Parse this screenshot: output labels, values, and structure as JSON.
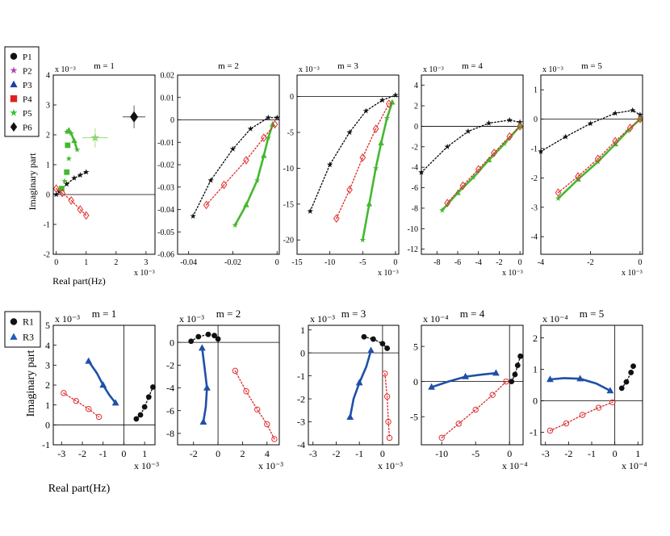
{
  "figure": {
    "legend_top": [
      {
        "label": "P1",
        "marker": "circle",
        "color": "#111111"
      },
      {
        "label": "P2",
        "marker": "star",
        "color": "#b048b0"
      },
      {
        "label": "P3",
        "marker": "triangle",
        "color": "#1f3fa8"
      },
      {
        "label": "P4",
        "marker": "square",
        "color": "#e02020"
      },
      {
        "label": "P5",
        "marker": "star",
        "color": "#33c233"
      },
      {
        "label": "P6",
        "marker": "diamond",
        "color": "#111111"
      }
    ],
    "legend_bottom": [
      {
        "label": "R1",
        "marker": "circle",
        "color": "#111111"
      },
      {
        "label": "R3",
        "marker": "triangle",
        "color": "#1f5fb4"
      }
    ],
    "top_ylabel": "Imaginary part",
    "top_xlabel": "Real part(Hz)",
    "bottom_ylabel": "Imaginary part",
    "bottom_xlabel": "Real part(Hz)"
  },
  "colors": {
    "black": "#111111",
    "green": "#44b830",
    "red": "#e03030",
    "blue": "#1f4fa8",
    "blue_light": "#2b6fd0",
    "magenta": "#b048b0",
    "pale_green": "#8fd66a"
  },
  "chart_data": [
    {
      "type": "scatter",
      "title": "m = 1",
      "exponent": "x 10⁻³",
      "xticks": [
        "0",
        "1",
        "2",
        "3"
      ],
      "yticks": [
        "-2",
        "-1",
        "0",
        "1",
        "2",
        "3",
        "4"
      ],
      "xlim": [
        -0.1,
        3.3
      ],
      "ylim": [
        -2,
        4
      ],
      "series": [
        {
          "name": "P6",
          "style": "black-dotted",
          "x": [
            0,
            0.1,
            0.35,
            0.6,
            0.8,
            1.0
          ],
          "y": [
            0,
            0.1,
            0.35,
            0.55,
            0.65,
            0.75
          ]
        },
        {
          "name": "P5",
          "style": "green-line",
          "x": [
            0.35,
            0.42,
            0.5,
            0.6,
            0.7
          ],
          "y": [
            2.1,
            2.15,
            2.05,
            1.8,
            1.5
          ]
        },
        {
          "name": "P5",
          "style": "green-markers",
          "x": [
            0.4,
            0.38,
            0.42,
            0.35,
            0.28,
            0.18
          ],
          "y": [
            2.1,
            1.65,
            1.2,
            0.75,
            0.45,
            0.2
          ]
        },
        {
          "name": "P2",
          "style": "red-dotted",
          "x": [
            0,
            0.2,
            0.5,
            0.8,
            1.0
          ],
          "y": [
            0.2,
            0.05,
            -0.2,
            -0.5,
            -0.7
          ]
        },
        {
          "name": "P6",
          "style": "diamond",
          "x": [
            2.6
          ],
          "y": [
            2.6
          ]
        },
        {
          "name": "P5",
          "style": "pale-star",
          "x": [
            1.3
          ],
          "y": [
            1.9
          ]
        }
      ]
    },
    {
      "type": "scatter",
      "title": "m = 2",
      "exponent": "",
      "xticks": [
        "-0.04",
        "-0.02",
        "0"
      ],
      "yticks": [
        "-0.06",
        "-0.05",
        "-0.04",
        "-0.03",
        "-0.02",
        "-0.01",
        "0",
        "0.01",
        "0.02"
      ],
      "xlim": [
        -0.045,
        0.001
      ],
      "ylim": [
        -0.06,
        0.02
      ],
      "series": [
        {
          "name": "P6",
          "style": "black-dotted",
          "x": [
            -0.038,
            -0.03,
            -0.02,
            -0.012,
            -0.004,
            0
          ],
          "y": [
            -0.043,
            -0.027,
            -0.013,
            -0.004,
            0.001,
            0.001
          ]
        },
        {
          "name": "P5",
          "style": "green-line",
          "x": [
            -0.019,
            -0.014,
            -0.009,
            -0.006,
            -0.004,
            -0.002
          ],
          "y": [
            -0.047,
            -0.038,
            -0.027,
            -0.016,
            -0.008,
            -0.002
          ]
        },
        {
          "name": "P2",
          "style": "red-dotted",
          "x": [
            -0.032,
            -0.024,
            -0.014,
            -0.006,
            -0.001
          ],
          "y": [
            -0.038,
            -0.029,
            -0.018,
            -0.008,
            -0.002
          ]
        }
      ]
    },
    {
      "type": "scatter",
      "title": "m = 3",
      "exponent": "x 10⁻³",
      "xticks": [
        "-15",
        "-10",
        "-5",
        "0"
      ],
      "yticks": [
        "-20",
        "-15",
        "-10",
        "-5",
        "0"
      ],
      "xlim": [
        -15,
        0.5
      ],
      "ylim": [
        -22,
        3
      ],
      "series": [
        {
          "name": "P6",
          "style": "black-dotted",
          "x": [
            -13,
            -10,
            -7,
            -4.5,
            -2,
            0
          ],
          "y": [
            -16,
            -9.5,
            -5,
            -2,
            -0.5,
            0.2
          ]
        },
        {
          "name": "P5",
          "style": "green-line",
          "x": [
            -5,
            -4,
            -3,
            -2.2,
            -1.3,
            -0.5
          ],
          "y": [
            -20,
            -15,
            -10,
            -6.5,
            -3,
            -0.8
          ]
        },
        {
          "name": "P2",
          "style": "red-dotted",
          "x": [
            -9,
            -7,
            -5,
            -3,
            -1
          ],
          "y": [
            -17,
            -13,
            -8.5,
            -4.5,
            -1
          ]
        }
      ]
    },
    {
      "type": "scatter",
      "title": "m = 4",
      "exponent": "x 10⁻³",
      "xticks": [
        "-8",
        "-6",
        "-4",
        "-2",
        "0"
      ],
      "yticks": [
        "-12",
        "-10",
        "-8",
        "-6",
        "-4",
        "-2",
        "0",
        "2",
        "4"
      ],
      "xlim": [
        -9.5,
        0.3
      ],
      "ylim": [
        -12.5,
        5
      ],
      "series": [
        {
          "name": "P6",
          "style": "black-dotted",
          "x": [
            -9.5,
            -7,
            -5,
            -3,
            -1,
            0
          ],
          "y": [
            -4.5,
            -2,
            -0.5,
            0.3,
            0.6,
            0.4
          ]
        },
        {
          "name": "P5",
          "style": "green-line",
          "x": [
            -7.5,
            -6,
            -4.5,
            -3,
            -1.5,
            0
          ],
          "y": [
            -8.2,
            -6.5,
            -5,
            -3.3,
            -1.7,
            0
          ]
        },
        {
          "name": "P2",
          "style": "red-dotted",
          "x": [
            -7,
            -5.5,
            -4,
            -2.5,
            -1,
            0
          ],
          "y": [
            -7.5,
            -5.8,
            -4.2,
            -2.6,
            -1,
            0
          ]
        }
      ]
    },
    {
      "type": "scatter",
      "title": "m = 5",
      "exponent": "x 10⁻³",
      "xticks": [
        "-4",
        "-2",
        "0"
      ],
      "yticks": [
        "-4",
        "-3",
        "-2",
        "-1",
        "0",
        "1"
      ],
      "xlim": [
        -4,
        0.1
      ],
      "ylim": [
        -4.6,
        1.5
      ],
      "series": [
        {
          "name": "P6",
          "style": "black-dotted",
          "x": [
            -4,
            -3,
            -2,
            -1,
            -0.3,
            0
          ],
          "y": [
            -1.1,
            -0.6,
            -0.15,
            0.2,
            0.3,
            0.15
          ]
        },
        {
          "name": "P5",
          "style": "green-line",
          "x": [
            -3.3,
            -2.5,
            -1.7,
            -1.0,
            -0.5,
            0
          ],
          "y": [
            -2.7,
            -2.05,
            -1.45,
            -0.85,
            -0.4,
            0
          ]
        },
        {
          "name": "P2",
          "style": "red-dotted",
          "x": [
            -3.3,
            -2.5,
            -1.7,
            -1.0,
            -0.4,
            0
          ],
          "y": [
            -2.5,
            -1.95,
            -1.35,
            -0.75,
            -0.3,
            0
          ]
        }
      ]
    },
    {
      "type": "scatter",
      "title": "m = 1",
      "exponent": "x 10⁻³",
      "xticks": [
        "-3",
        "-2",
        "-1",
        "0",
        "1"
      ],
      "yticks": [
        "-1",
        "0",
        "1",
        "2",
        "3",
        "4",
        "5"
      ],
      "xlim": [
        -3.4,
        1.5
      ],
      "ylim": [
        -1,
        5
      ],
      "series": [
        {
          "name": "R3",
          "style": "blue-line",
          "x": [
            -1.7,
            -1.3,
            -1.0,
            -0.7,
            -0.4
          ],
          "y": [
            3.2,
            2.6,
            2.0,
            1.5,
            1.1
          ]
        },
        {
          "name": "R1",
          "style": "red-dotted",
          "x": [
            -2.9,
            -2.3,
            -1.7,
            -1.2
          ],
          "y": [
            1.6,
            1.2,
            0.8,
            0.4
          ]
        },
        {
          "name": "R1",
          "style": "black-dotted",
          "x": [
            0.6,
            0.8,
            1.0,
            1.2,
            1.4
          ],
          "y": [
            0.3,
            0.5,
            0.9,
            1.4,
            1.9
          ]
        }
      ]
    },
    {
      "type": "scatter",
      "title": "m = 2",
      "exponent": "x 10⁻³",
      "xticks": [
        "-2",
        "0",
        "2",
        "4"
      ],
      "yticks": [
        "-8",
        "-6",
        "-4",
        "-2",
        "0"
      ],
      "xlim": [
        -3.3,
        5
      ],
      "ylim": [
        -9,
        1.5
      ],
      "series": [
        {
          "name": "R3",
          "style": "blue-line",
          "x": [
            -1.3,
            -1.1,
            -0.9,
            -1.0,
            -1.2
          ],
          "y": [
            -0.5,
            -2.2,
            -4.0,
            -5.7,
            -7.0
          ]
        },
        {
          "name": "R1",
          "style": "red-dotted",
          "x": [
            1.4,
            2.3,
            3.2,
            4.0,
            4.6
          ],
          "y": [
            -2.5,
            -4.3,
            -5.9,
            -7.2,
            -8.5
          ]
        },
        {
          "name": "R1",
          "style": "black-dotted",
          "x": [
            -2.2,
            -1.6,
            -0.8,
            -0.3,
            0.0
          ],
          "y": [
            0.1,
            0.5,
            0.7,
            0.6,
            0.3
          ]
        }
      ]
    },
    {
      "type": "scatter",
      "title": "m = 3",
      "exponent": "x 10⁻³",
      "xticks": [
        "-3",
        "-2",
        "-1",
        "0"
      ],
      "yticks": [
        "-4",
        "-3",
        "-2",
        "-1",
        "0",
        "1"
      ],
      "xlim": [
        -3.2,
        0.7
      ],
      "ylim": [
        -4,
        1.2
      ],
      "series": [
        {
          "name": "R3",
          "style": "blue-line",
          "x": [
            -0.5,
            -0.7,
            -1.0,
            -1.25,
            -1.4
          ],
          "y": [
            0.1,
            -0.6,
            -1.3,
            -2.0,
            -2.8
          ]
        },
        {
          "name": "R1",
          "style": "red-dotted",
          "x": [
            0.1,
            0.2,
            0.25,
            0.3
          ],
          "y": [
            -0.9,
            -1.9,
            -3.0,
            -3.7
          ]
        },
        {
          "name": "R1",
          "style": "black-dotted",
          "x": [
            -0.8,
            -0.4,
            0,
            0.2
          ],
          "y": [
            0.7,
            0.6,
            0.4,
            0.2
          ]
        }
      ]
    },
    {
      "type": "scatter",
      "title": "m = 4",
      "exponent": "x 10⁻⁴",
      "xticks": [
        "-10",
        "-5",
        "0"
      ],
      "yticks": [
        "-5",
        "0",
        "5"
      ],
      "xlim": [
        -13,
        2
      ],
      "ylim": [
        -9,
        8
      ],
      "series": [
        {
          "name": "R3",
          "style": "blue-line",
          "x": [
            -11.5,
            -9,
            -6.5,
            -4,
            -2
          ],
          "y": [
            -0.8,
            0.0,
            0.7,
            1.0,
            1.2
          ]
        },
        {
          "name": "R1",
          "style": "red-dotted",
          "x": [
            -10,
            -7.5,
            -5,
            -2.5,
            -0.5
          ],
          "y": [
            -8.0,
            -6.0,
            -4.0,
            -1.9,
            0.0
          ]
        },
        {
          "name": "R1",
          "style": "black-dotted",
          "x": [
            0.3,
            0.8,
            1.2,
            1.6
          ],
          "y": [
            0.0,
            1.0,
            2.3,
            3.6
          ]
        }
      ]
    },
    {
      "type": "scatter",
      "title": "m = 5",
      "exponent": "x 10⁻⁴",
      "xticks": [
        "-3",
        "-2",
        "-1",
        "0",
        "1"
      ],
      "yticks": [
        "-1",
        "0",
        "1",
        "2"
      ],
      "xlim": [
        -3.2,
        1.2
      ],
      "ylim": [
        -1.4,
        2.4
      ],
      "series": [
        {
          "name": "R3",
          "style": "blue-line",
          "x": [
            -2.8,
            -2.2,
            -1.5,
            -0.8,
            -0.2
          ],
          "y": [
            0.68,
            0.72,
            0.7,
            0.55,
            0.32
          ]
        },
        {
          "name": "R1",
          "style": "red-dotted",
          "x": [
            -2.8,
            -2.1,
            -1.4,
            -0.7,
            -0.1
          ],
          "y": [
            -0.95,
            -0.72,
            -0.45,
            -0.22,
            -0.05
          ]
        },
        {
          "name": "R1",
          "style": "black-dotted",
          "x": [
            0.3,
            0.5,
            0.7,
            0.8
          ],
          "y": [
            0.4,
            0.6,
            0.9,
            1.1
          ]
        }
      ]
    }
  ]
}
